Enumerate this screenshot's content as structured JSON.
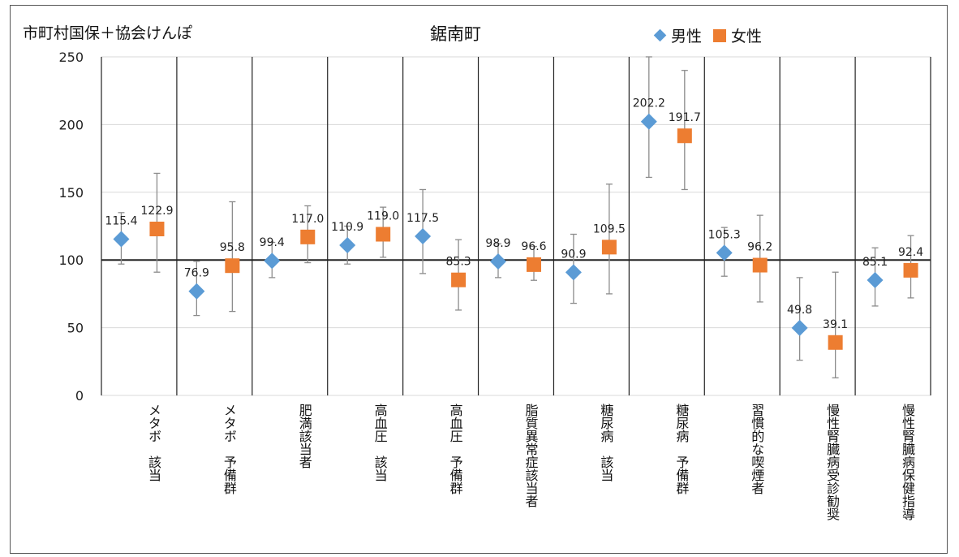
{
  "header": {
    "left_label": "市町村国保＋協会けんぽ",
    "center_title": "鋸南町"
  },
  "legend": {
    "male": "男性",
    "female": "女性"
  },
  "colors": {
    "male": "#5b9bd5",
    "female": "#ed7d31",
    "error_bar": "#8c8c8c",
    "reference_line": "#222222",
    "grid": "#d9d9d9",
    "category_divider": "#222222"
  },
  "chart_data": {
    "type": "scatter",
    "title": "鋸南町",
    "ylim": [
      0,
      250
    ],
    "yticks": [
      0,
      50,
      100,
      150,
      200,
      250
    ],
    "reference_value": 100,
    "grid": true,
    "legend_position": "top-right",
    "categories": [
      "メタボ　該当",
      "メタボ　予備群",
      "肥満該当者",
      "高血圧　該当",
      "高血圧　予備群",
      "脂質異常症該当者",
      "糖尿病　該当",
      "糖尿病　予備群",
      "習慣的な喫煙者",
      "慢性腎臓病受診勧奨",
      "慢性腎臓病保健指導"
    ],
    "series": [
      {
        "name": "男性",
        "marker": "diamond",
        "values": [
          115.4,
          76.9,
          99.4,
          110.9,
          117.5,
          98.9,
          90.9,
          202.2,
          105.3,
          49.8,
          85.1
        ],
        "labels": [
          "115.4",
          "76.9",
          "99.4",
          "110.9",
          "117.5",
          "98.9",
          "90.9",
          "202.2",
          "105.3",
          "49.8",
          "85.1"
        ],
        "ci_low": [
          97,
          59,
          87,
          97,
          90,
          87,
          68,
          161,
          88,
          26,
          66
        ],
        "ci_high": [
          135,
          99,
          113,
          125,
          152,
          112,
          119,
          250,
          124,
          87,
          109
        ]
      },
      {
        "name": "女性",
        "marker": "square",
        "values": [
          122.9,
          95.8,
          117.0,
          119.0,
          85.3,
          96.6,
          109.5,
          191.7,
          96.2,
          39.1,
          92.4
        ],
        "labels": [
          "122.9",
          "95.8",
          "117.0",
          "119.0",
          "85.3",
          "96.6",
          "109.5",
          "191.7",
          "96.2",
          "39.1",
          "92.4"
        ],
        "ci_low": [
          91,
          62,
          98,
          102,
          63,
          85,
          75,
          152,
          69,
          13,
          72
        ],
        "ci_high": [
          164,
          143,
          140,
          139,
          115,
          110,
          156,
          240,
          133,
          91,
          118
        ]
      }
    ]
  }
}
